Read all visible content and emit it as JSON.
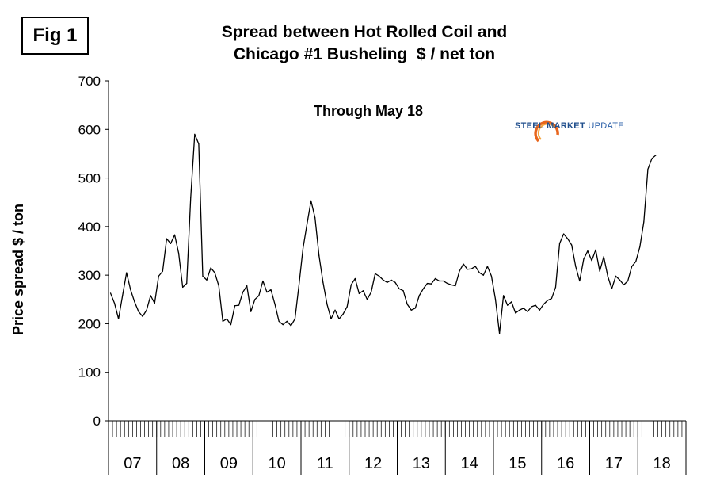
{
  "figure": {
    "label": "Fig 1",
    "title_line1": "Spread between Hot Rolled Coil and",
    "title_line2": "Chicago #1 Busheling  $ / net ton",
    "annotation": "Through May 18",
    "logo": {
      "bold": "STEEL MARKET",
      "light": "UPDATE",
      "color": "#1f4e8c",
      "accent": "#e8651c"
    }
  },
  "chart_data": {
    "type": "line",
    "title": "Spread between Hot Rolled Coil and Chicago #1 Busheling  $ / net ton",
    "ylabel": "Price spread $ / ton",
    "xlabel": "",
    "ylim": [
      0,
      700
    ],
    "yticks": [
      0,
      100,
      200,
      300,
      400,
      500,
      600,
      700
    ],
    "grid": false,
    "legend": "none",
    "line_color": "#000000",
    "year_labels": [
      "07",
      "08",
      "09",
      "10",
      "11",
      "12",
      "13",
      "14",
      "15",
      "16",
      "17",
      "18"
    ],
    "x_start": "2007-01",
    "x_interval": "month",
    "series": [
      {
        "name": "",
        "values": [
          263,
          242,
          210,
          258,
          305,
          270,
          245,
          225,
          215,
          228,
          258,
          242,
          298,
          308,
          375,
          365,
          383,
          345,
          275,
          283,
          460,
          590,
          570,
          298,
          290,
          315,
          305,
          278,
          205,
          210,
          198,
          237,
          238,
          265,
          278,
          225,
          250,
          258,
          288,
          265,
          270,
          240,
          205,
          198,
          205,
          196,
          210,
          280,
          355,
          405,
          453,
          418,
          340,
          285,
          240,
          210,
          228,
          210,
          220,
          235,
          280,
          293,
          262,
          268,
          250,
          265,
          303,
          298,
          290,
          285,
          290,
          285,
          272,
          268,
          240,
          228,
          232,
          258,
          272,
          283,
          282,
          293,
          288,
          288,
          283,
          280,
          278,
          308,
          323,
          312,
          313,
          318,
          305,
          300,
          318,
          298,
          250,
          180,
          258,
          238,
          245,
          222,
          228,
          232,
          225,
          235,
          238,
          228,
          240,
          248,
          252,
          275,
          365,
          385,
          375,
          362,
          318,
          288,
          333,
          350,
          330,
          352,
          308,
          338,
          298,
          272,
          298,
          290,
          280,
          288,
          318,
          328,
          358,
          410,
          518,
          540,
          547
        ]
      }
    ]
  }
}
